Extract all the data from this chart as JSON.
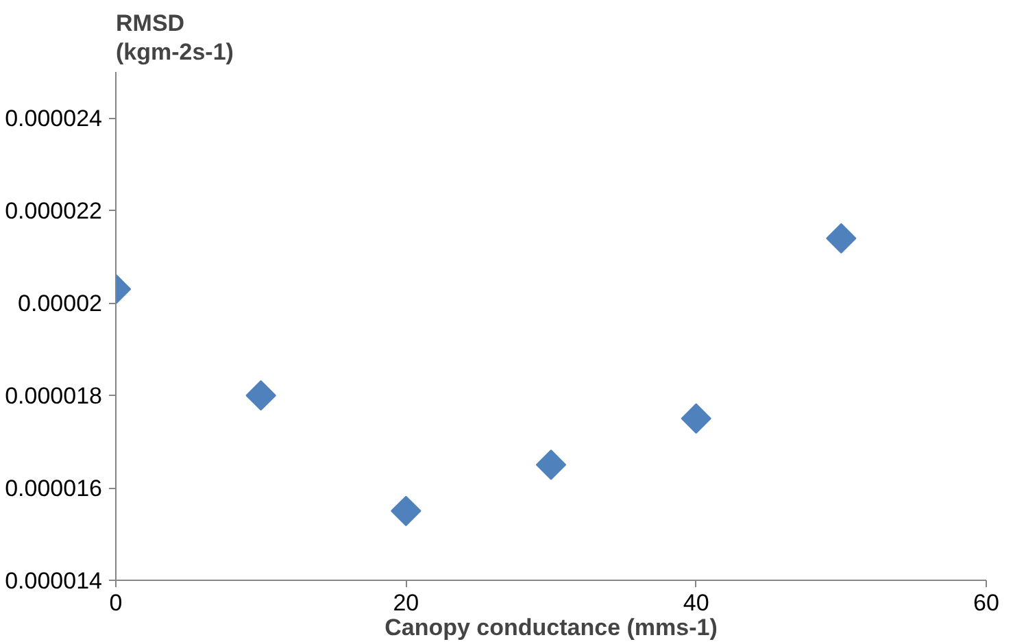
{
  "chart_data": {
    "type": "scatter",
    "xlabel": "Canopy conductance (mms-1)",
    "ylabel": "RMSD\n(kgm-2s-1)",
    "x": [
      0,
      10,
      20,
      30,
      40,
      50
    ],
    "series": [
      {
        "color": "#4f81bd",
        "values": [
          2.03e-05,
          1.8e-05,
          1.55e-05,
          1.65e-05,
          1.75e-05,
          2.14e-05
        ]
      }
    ],
    "marker": "diamond",
    "grid": false,
    "xlim": [
      0,
      60
    ],
    "xticks": [
      0,
      20,
      40,
      60
    ],
    "ylim": [
      1.4e-05,
      2.5e-05
    ],
    "yticks": [
      {
        "value": 1.4e-05,
        "label": "0.000014"
      },
      {
        "value": 1.6e-05,
        "label": "0.000016"
      },
      {
        "value": 1.8e-05,
        "label": "0.000018"
      },
      {
        "value": 2e-05,
        "label": "0.00002"
      },
      {
        "value": 2.2e-05,
        "label": "0.000022"
      },
      {
        "value": 2.4e-05,
        "label": "0.000024"
      }
    ]
  }
}
